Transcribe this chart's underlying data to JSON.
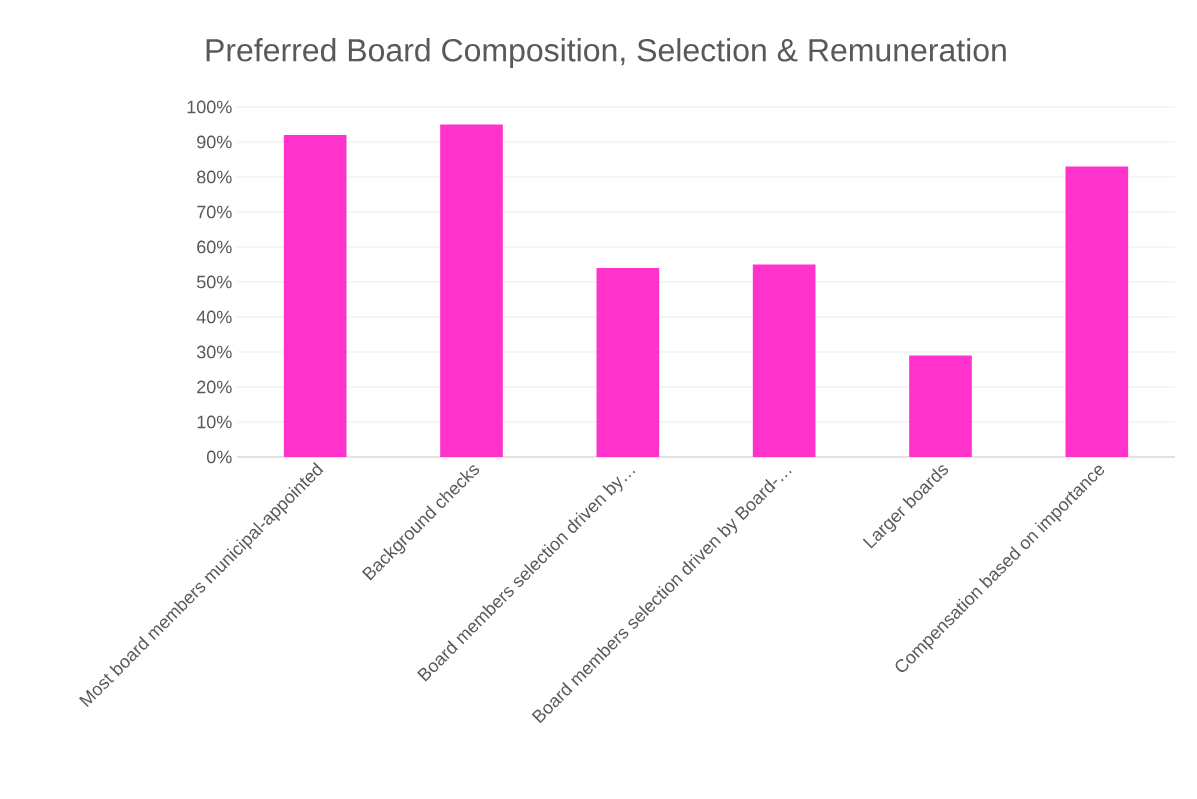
{
  "chart_data": {
    "type": "bar",
    "title": "Preferred Board Composition, Selection & Remuneration",
    "categories": [
      "Most board members municipal-appointed",
      "Background checks",
      "Board members selection driven by…",
      "Board members selection driven by Board-…",
      "Larger boards",
      "Compensation based on importance"
    ],
    "values": [
      92,
      95,
      54,
      55,
      29,
      83
    ],
    "color": "#ff33cc",
    "ylim": [
      0,
      100
    ],
    "yticks": [
      {
        "value": 0,
        "label": "0%"
      },
      {
        "value": 10,
        "label": "10%"
      },
      {
        "value": 20,
        "label": "20%"
      },
      {
        "value": 30,
        "label": "30%"
      },
      {
        "value": 40,
        "label": "40%"
      },
      {
        "value": 50,
        "label": "50%"
      },
      {
        "value": 60,
        "label": "60%"
      },
      {
        "value": 70,
        "label": "70%"
      },
      {
        "value": 80,
        "label": "80%"
      },
      {
        "value": 90,
        "label": "90%"
      },
      {
        "value": 100,
        "label": "100%"
      }
    ],
    "grid": "y"
  }
}
